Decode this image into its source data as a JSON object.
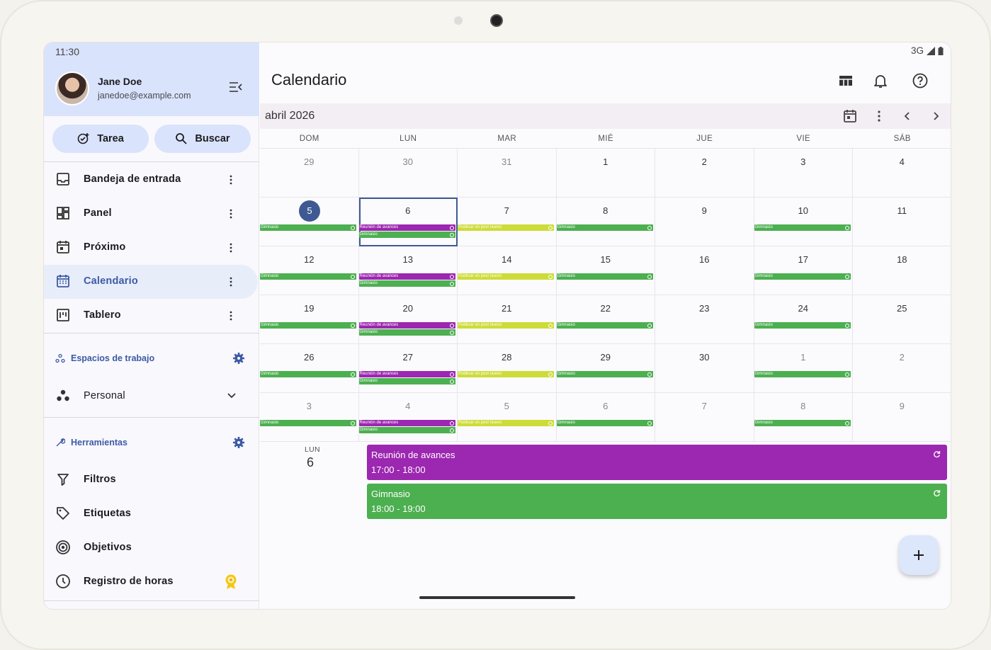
{
  "status": {
    "time": "11:30",
    "network": "3G"
  },
  "user": {
    "name": "Jane Doe",
    "email": "janedoe@example.com"
  },
  "actions": {
    "task_label": "Tarea",
    "search_label": "Buscar"
  },
  "nav": [
    {
      "label": "Bandeja de entrada",
      "icon": "inbox-icon"
    },
    {
      "label": "Panel",
      "icon": "dashboard-icon"
    },
    {
      "label": "Próximo",
      "icon": "upcoming-icon"
    },
    {
      "label": "Calendario",
      "icon": "calendar-icon",
      "active": true
    },
    {
      "label": "Tablero",
      "icon": "board-icon"
    }
  ],
  "workspaces": {
    "heading": "Espacios de trabajo",
    "current": "Personal"
  },
  "tools": {
    "heading": "Herramientas",
    "items": [
      {
        "label": "Filtros",
        "icon": "filter-icon"
      },
      {
        "label": "Etiquetas",
        "icon": "tag-icon"
      },
      {
        "label": "Objetivos",
        "icon": "target-icon"
      },
      {
        "label": "Registro de horas",
        "icon": "clock-icon"
      }
    ]
  },
  "header": {
    "title": "Calendario"
  },
  "calendar": {
    "month_label": "abril 2026",
    "weekdays": [
      "DOM",
      "LUN",
      "MAR",
      "MIÉ",
      "JUE",
      "VIE",
      "SÁB"
    ],
    "weeks": [
      [
        "29",
        "30",
        "31",
        "1",
        "2",
        "3",
        "4"
      ],
      [
        "5",
        "6",
        "7",
        "8",
        "9",
        "10",
        "11"
      ],
      [
        "12",
        "13",
        "14",
        "15",
        "16",
        "17",
        "18"
      ],
      [
        "19",
        "20",
        "21",
        "22",
        "23",
        "24",
        "25"
      ],
      [
        "26",
        "27",
        "28",
        "29",
        "30",
        "1",
        "2"
      ],
      [
        "3",
        "4",
        "5",
        "6",
        "7",
        "8",
        "9"
      ]
    ],
    "event_titles": {
      "gym": "Gimnasio",
      "meeting": "Reunión de avances",
      "post": "Publicar un post nuevo"
    }
  },
  "agenda": {
    "dow": "LUN",
    "day": "6",
    "events": [
      {
        "title": "Reunión de avances",
        "time": "17:00 - 18:00",
        "color": "#9c27b0"
      },
      {
        "title": "Gimnasio",
        "time": "18:00 - 19:00",
        "color": "#4caf50"
      }
    ]
  },
  "colors": {
    "accent": "#3c5aa6",
    "today": "#3f5a92",
    "gym": "#4caf50",
    "meeting": "#9c27b0",
    "post": "#cddc39"
  }
}
